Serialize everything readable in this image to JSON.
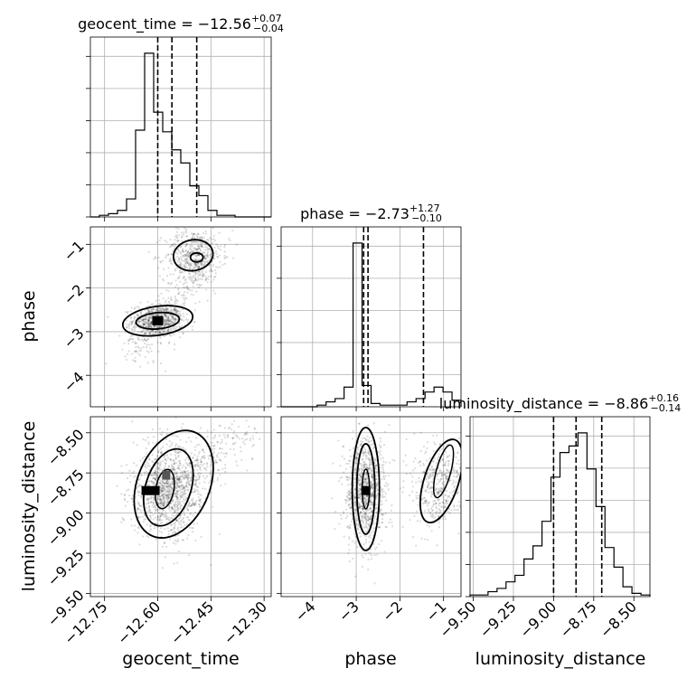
{
  "chart_data": {
    "type": "corner",
    "parameters": [
      "geocent_time",
      "phase",
      "luminosity_distance"
    ],
    "titles": [
      {
        "param": "geocent_time",
        "lead": "geocent_time = −12.56",
        "sup": "+0.07",
        "sub": "−0.04"
      },
      {
        "param": "phase",
        "lead": "phase = −2.73",
        "sup": "+1.27",
        "sub": "−0.10"
      },
      {
        "param": "luminosity_distance",
        "lead": "luminosity_distance = −8.86",
        "sup": "+0.16",
        "sub": "−0.14"
      }
    ],
    "axis_labels": {
      "geocent_time": "geocent_time",
      "phase": "phase",
      "luminosity_distance": "luminosity_distance"
    },
    "ranges": {
      "geocent_time": [
        -12.79,
        -12.28
      ],
      "phase": [
        -4.72,
        -0.6
      ],
      "luminosity_distance": [
        -9.52,
        -8.4
      ]
    },
    "ticks": {
      "geocent_time": {
        "values": [
          -12.75,
          -12.6,
          -12.45,
          -12.3
        ],
        "labels": [
          "−12.75",
          "−12.60",
          "−12.45",
          "−12.30"
        ]
      },
      "phase": {
        "values": [
          -4,
          -3,
          -2,
          -1
        ],
        "labels": [
          "−4",
          "−3",
          "−2",
          "−1"
        ]
      },
      "luminosity_distance": {
        "values": [
          -9.5,
          -9.25,
          -9.0,
          -8.75,
          -8.5
        ],
        "labels": [
          "−9.50",
          "−9.25",
          "−9.00",
          "−8.75",
          "−8.50"
        ]
      }
    },
    "quantile_lines": {
      "geocent_time": [
        -12.6,
        -12.56,
        -12.49
      ],
      "phase": [
        -2.83,
        -2.73,
        -1.46
      ],
      "luminosity_distance": [
        -9.0,
        -8.86,
        -8.7
      ]
    },
    "histograms": {
      "geocent_time": {
        "edges_range": [
          -12.79,
          -12.28
        ],
        "bins": 20,
        "counts": [
          0,
          0.01,
          0.02,
          0.04,
          0.11,
          0.53,
          1.0,
          0.64,
          0.52,
          0.41,
          0.33,
          0.19,
          0.13,
          0.04,
          0.01,
          0.01,
          0,
          0,
          0,
          0
        ]
      },
      "phase": {
        "edges_range": [
          -4.72,
          -0.6
        ],
        "bins": 20,
        "counts": [
          0,
          0,
          0,
          0,
          0.01,
          0.03,
          0.05,
          0.12,
          1.0,
          0.13,
          0.02,
          0.01,
          0.01,
          0.01,
          0.03,
          0.05,
          0.09,
          0.12,
          0.09,
          0.04
        ]
      },
      "luminosity_distance": {
        "edges_range": [
          -9.52,
          -8.4
        ],
        "bins": 20,
        "counts": [
          0.01,
          0.01,
          0.03,
          0.05,
          0.09,
          0.13,
          0.23,
          0.31,
          0.46,
          0.73,
          0.88,
          0.92,
          1.0,
          0.78,
          0.55,
          0.3,
          0.18,
          0.06,
          0.02,
          0.01
        ]
      }
    },
    "scatter_pairs": [
      {
        "x": "geocent_time",
        "y": "phase"
      },
      {
        "x": "geocent_time",
        "y": "luminosity_distance"
      },
      {
        "x": "phase",
        "y": "luminosity_distance"
      }
    ],
    "grid": true
  }
}
